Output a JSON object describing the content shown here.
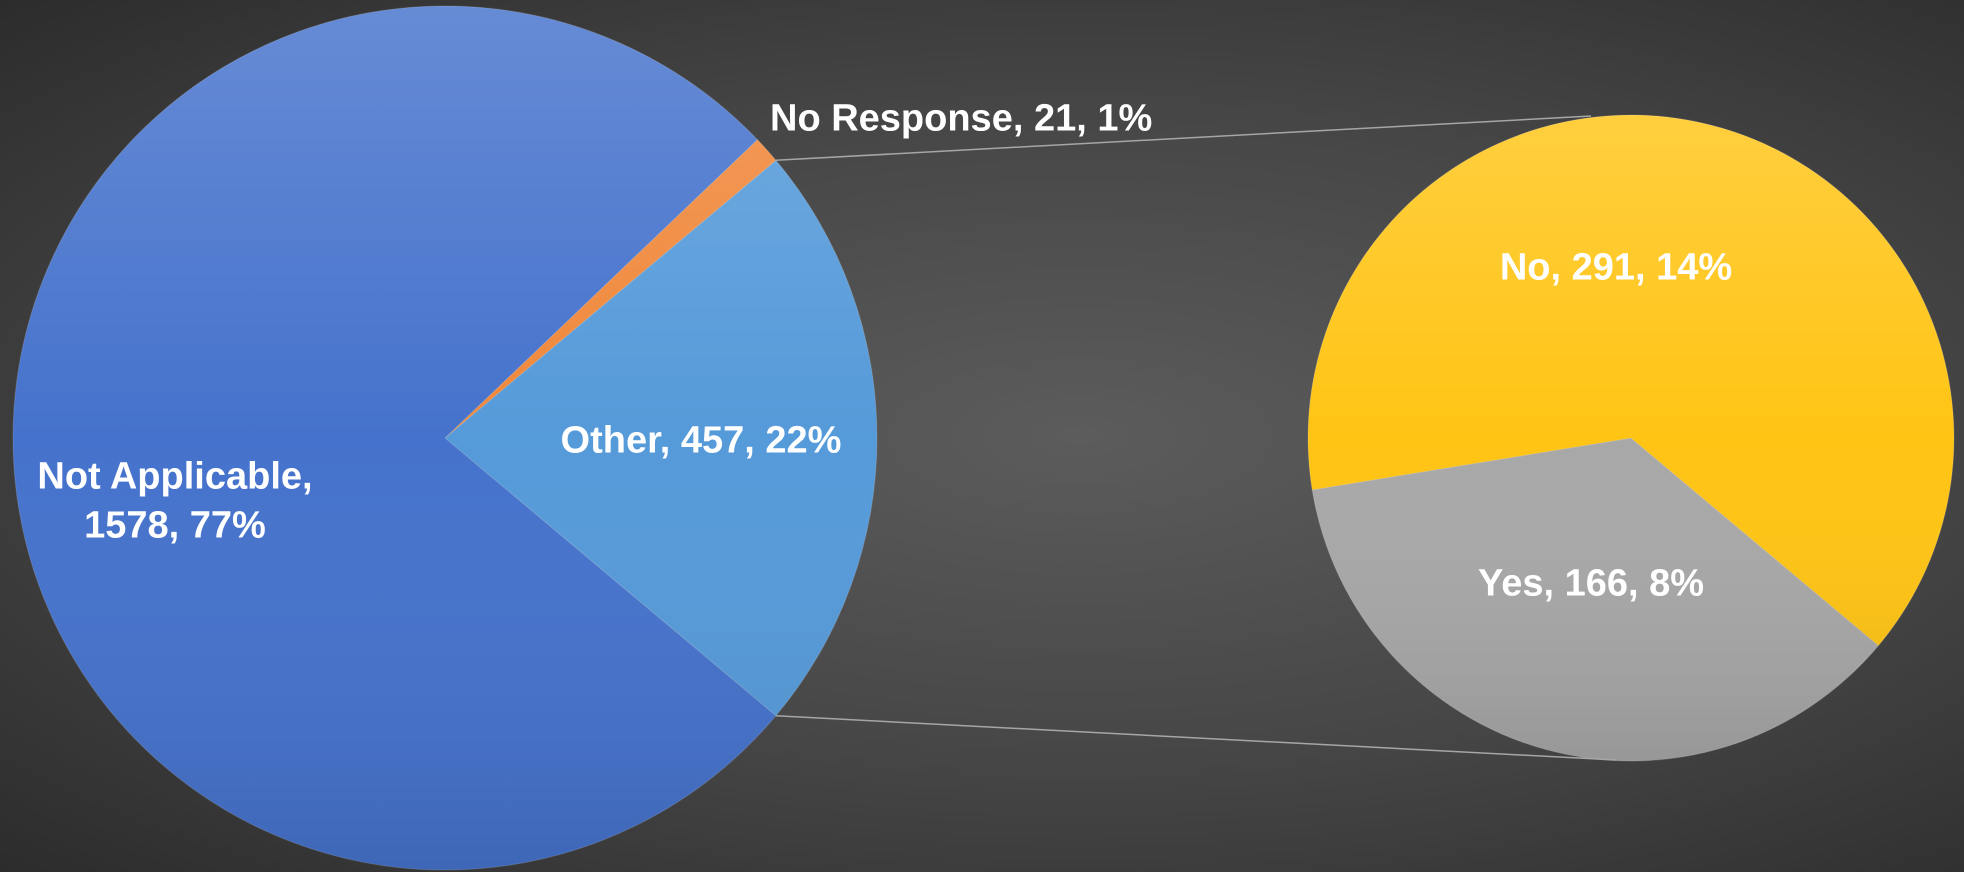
{
  "chart_data": {
    "type": "pie-of-pie",
    "primary": {
      "values": [
        1578,
        21,
        457
      ],
      "labels": [
        "Not Applicable, 1578, 77%",
        "No Response, 21, 1%",
        "Other, 457, 22%"
      ],
      "colors": [
        "#4572cc",
        "#f0873a",
        "#559ad9"
      ]
    },
    "secondary": {
      "values": [
        291,
        166
      ],
      "labels": [
        "No, 291, 14%",
        "Yes, 166, 8%"
      ],
      "colors": [
        "#ffc414",
        "#a8a8a8"
      ]
    }
  }
}
